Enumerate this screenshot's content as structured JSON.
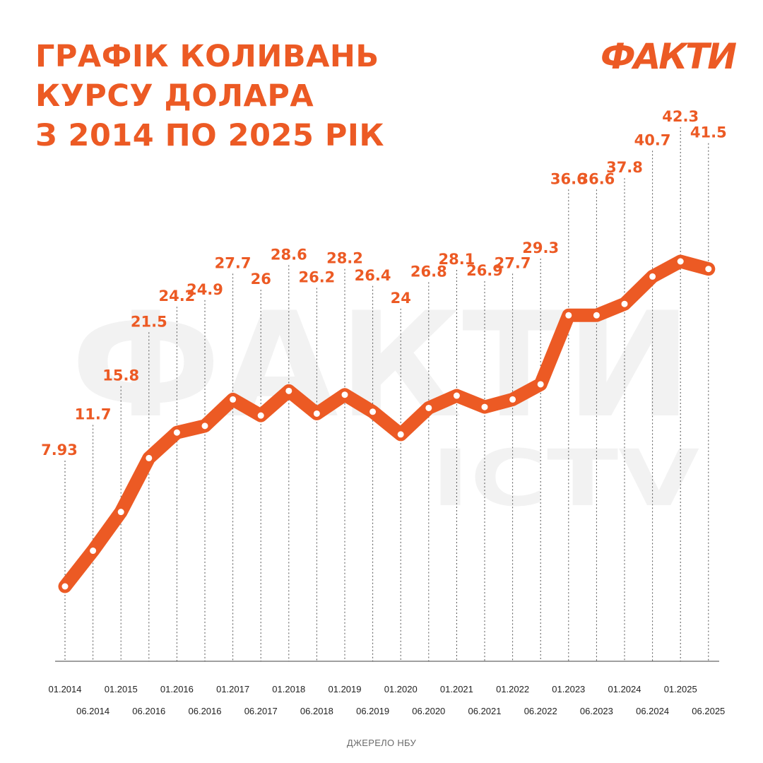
{
  "title_lines": [
    "ГРАФІК КОЛИВАНЬ",
    "КУРСУ ДОЛАРА",
    "З 2014 ПО 2025 РІК"
  ],
  "logo": "ФАКТИ",
  "watermark": {
    "main": "ФАКТИ",
    "sub": "ICTV"
  },
  "source": "ДЖЕРЕЛО НБУ",
  "colors": {
    "accent": "#ec5a24",
    "text": "#222222",
    "muted": "#6b6b6b",
    "watermark": "#f2f2f2"
  },
  "chart_data": {
    "type": "line",
    "title": "ГРАФІК КОЛИВАНЬ КУРСУ ДОЛАРА З 2014 ПО 2025 РІК",
    "xlabel": "",
    "ylabel": "",
    "ylim": [
      0,
      45
    ],
    "grid": false,
    "legend": "none",
    "x": [
      "01.2014",
      "06.2014",
      "01.2015",
      "06.2016",
      "01.2016",
      "06.2016",
      "01.2017",
      "06.2017",
      "01.2018",
      "06.2018",
      "01.2019",
      "06.2019",
      "01.2020",
      "06.2020",
      "01.2021",
      "06.2021",
      "01.2022",
      "06.2022",
      "01.2023",
      "06.2023",
      "01.2024",
      "06.2024",
      "01.2025",
      "06.2025"
    ],
    "series": [
      {
        "values": [
          7.93,
          11.7,
          15.8,
          21.5,
          24.2,
          24.9,
          27.7,
          26,
          28.6,
          26.2,
          28.2,
          26.4,
          24,
          26.8,
          28.1,
          26.9,
          27.7,
          29.3,
          36.6,
          36.6,
          37.8,
          40.7,
          42.3,
          41.5
        ],
        "labels": [
          "7.93",
          "11.7",
          "15.8",
          "21.5",
          "24.2",
          "24.9",
          "27.7",
          "26",
          "28.6",
          "26.2",
          "28.2",
          "26.4",
          "24",
          "26.8",
          "28.1",
          "26.9",
          "27.7",
          "29.3",
          "36.6",
          "36.6",
          "37.8",
          "40.7",
          "42.3",
          "41.5"
        ]
      }
    ]
  }
}
